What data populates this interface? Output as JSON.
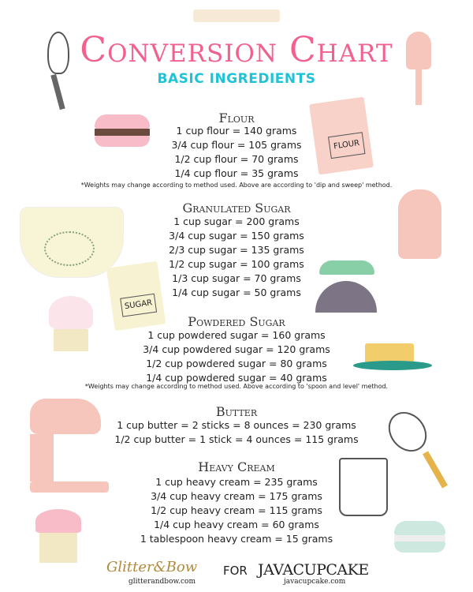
{
  "title": "Conversion Chart",
  "subtitle": "BASIC INGREDIENTS",
  "sections": [
    {
      "heading": "Flour",
      "lines": [
        "1 cup flour = 140 grams",
        "3/4 cup flour = 105 grams",
        "1/2 cup flour = 70 grams",
        "1/4 cup flour = 35 grams"
      ],
      "note": "*Weights may change according to method used. Above are according to 'dip and sweep' method."
    },
    {
      "heading": "Granulated Sugar",
      "lines": [
        "1 cup sugar = 200 grams",
        "3/4 cup sugar = 150 grams",
        "2/3 cup sugar = 135 grams",
        "1/2 cup sugar = 100 grams",
        "1/3 cup sugar = 70 grams",
        "1/4 cup sugar = 50 grams"
      ]
    },
    {
      "heading": "Powdered Sugar",
      "lines": [
        "1 cup powdered sugar = 160 grams",
        "3/4 cup powdered sugar = 120 grams",
        "1/2 cup powdered sugar = 80 grams",
        "1/4 cup powdered sugar = 40 grams"
      ],
      "note": "*Weights may change according to method used. Above according to 'spoon and level' method."
    },
    {
      "heading": "Butter",
      "lines": [
        "1 cup butter = 2 sticks = 8 ounces = 230 grams",
        "1/2 cup butter = 1 stick = 4 ounces = 115 grams"
      ]
    },
    {
      "heading": "Heavy Cream",
      "lines": [
        "1 cup heavy cream = 235 grams",
        "3/4 cup heavy cream = 175 grams",
        "1/2 cup heavy cream = 115 grams",
        "1/4 cup heavy cream = 60 grams",
        "1 tablespoon heavy cream = 15 grams"
      ]
    }
  ],
  "labels": {
    "flour_bag": "FLOUR",
    "sugar_bag": "SUGAR"
  },
  "footer": {
    "brand1": "Glitter&Bow",
    "brand1_url": "glitterandbow.com",
    "for": "FOR",
    "brand2": "JAVACUPCAKE",
    "brand2_url": "javacupcake.com"
  },
  "colors": {
    "title": "#f2608e",
    "subtitle": "#1fc3d6"
  }
}
